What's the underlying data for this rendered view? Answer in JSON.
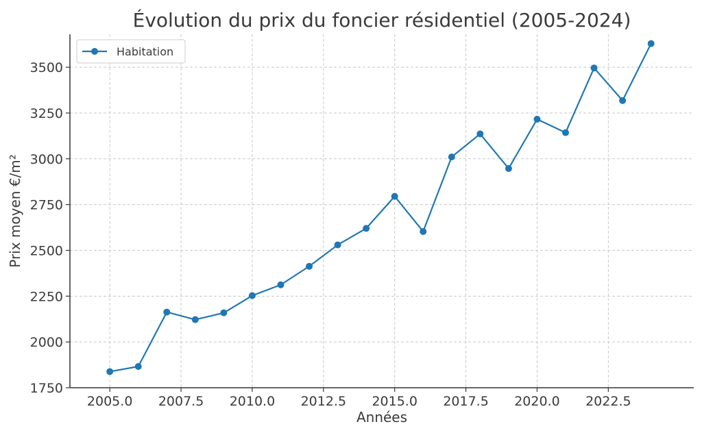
{
  "chart_data": {
    "type": "line",
    "title": "Évolution du prix du foncier résidentiel (2005-2024)",
    "xlabel": "Années",
    "ylabel": "Prix moyen €/m²",
    "x": [
      2005,
      2006,
      2007,
      2008,
      2009,
      2010,
      2011,
      2012,
      2013,
      2014,
      2015,
      2016,
      2017,
      2018,
      2019,
      2020,
      2021,
      2022,
      2023,
      2024
    ],
    "series": [
      {
        "name": "Habitation",
        "color": "#1f77b4",
        "values": [
          1838,
          1866,
          2163,
          2122,
          2159,
          2253,
          2312,
          2413,
          2530,
          2620,
          2795,
          2603,
          3010,
          3136,
          2947,
          3216,
          3143,
          3496,
          3318,
          3629
        ]
      }
    ],
    "xlim": [
      2003.6,
      2025.5
    ],
    "ylim": [
      1750,
      3680
    ],
    "xticks": [
      2005.0,
      2007.5,
      2010.0,
      2012.5,
      2015.0,
      2017.5,
      2020.0,
      2022.5
    ],
    "xtick_labels": [
      "2005.0",
      "2007.5",
      "2010.0",
      "2012.5",
      "2015.0",
      "2017.5",
      "2020.0",
      "2022.5"
    ],
    "yticks": [
      1750,
      2000,
      2250,
      2500,
      2750,
      3000,
      3250,
      3500
    ],
    "ytick_labels": [
      "1750",
      "2000",
      "2250",
      "2500",
      "2750",
      "3000",
      "3250",
      "3500"
    ],
    "grid": true,
    "legend_position": "top-left"
  }
}
